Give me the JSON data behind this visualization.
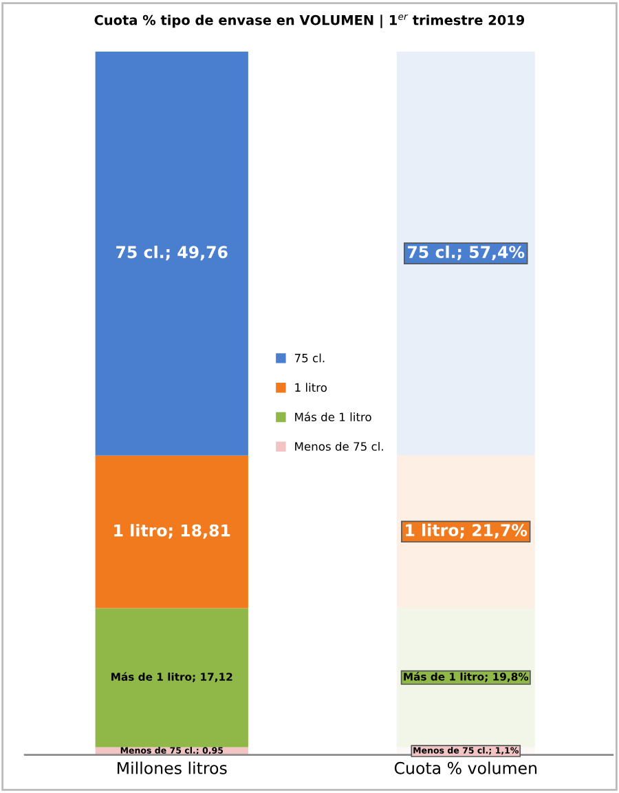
{
  "chart_data": {
    "type": "bar",
    "stacked": true,
    "title": "Cuota % tipo de envase en VOLUMEN | 1$^{er}$ trimestre 2019",
    "categories": [
      "Millones litros",
      "Cuota % volumen"
    ],
    "series": [
      {
        "name": "Menos de 75 cl.",
        "color": "#f2c4c4",
        "values": [
          0.95,
          null
        ],
        "value_labels": [
          "Menos de 75 cl.; 0,95",
          null
        ]
      },
      {
        "name": "Más de 1 litro",
        "color": "#8fb848",
        "values": [
          17.12,
          null
        ],
        "value_labels": [
          "Más de 1 litro; 17,12",
          null
        ]
      },
      {
        "name": "1 litro",
        "color": "#f27a1e",
        "values": [
          18.81,
          null
        ],
        "value_labels": [
          "1 litro; 18,81",
          null
        ]
      },
      {
        "name": "75 cl.",
        "color": "#4a7fd0",
        "values": [
          49.76,
          null
        ],
        "value_labels": [
          "75 cl.; 49,76",
          null
        ]
      },
      {
        "color": "#f2c4c4",
        "axis": "y2",
        "values": [
          null,
          1.1
        ],
        "value_labels": [
          null,
          "Menos de 75 cl.; 1,1%"
        ]
      },
      {
        "color": "#8fb848",
        "axis": "y2",
        "values": [
          null,
          19.8
        ],
        "value_labels": [
          null,
          "Más de 1 litro; 19,8%"
        ]
      },
      {
        "color": "#f27a1e",
        "axis": "y2",
        "values": [
          null,
          21.7
        ],
        "value_labels": [
          null,
          "1 litro; 21,7%"
        ]
      },
      {
        "color": "#4a7fd0",
        "axis": "y2",
        "values": [
          null,
          57.4
        ],
        "value_labels": [
          null,
          "75 cl.; 57,4%"
        ]
      }
    ],
    "legend": "center"
  }
}
